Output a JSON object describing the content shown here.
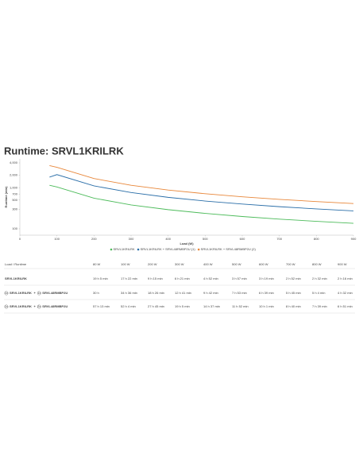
{
  "title": "Runtime: SRVL1KRILRK",
  "chart_data": {
    "type": "line",
    "x_label": "Load (W)",
    "y_label": "Runtime (min)",
    "x": [
      80,
      100,
      200,
      300,
      400,
      500,
      600,
      700,
      800,
      900
    ],
    "xlim": [
      0,
      900
    ],
    "xticks": [
      0,
      100,
      200,
      300,
      400,
      500,
      600,
      700,
      800,
      900
    ],
    "ylim": [
      70,
      5000
    ],
    "log_y": true,
    "yticks": [
      {
        "value": 4000,
        "label": "4,000"
      },
      {
        "value": 2000,
        "label": "2,000"
      },
      {
        "value": 1000,
        "label": "1,000"
      },
      700,
      500,
      300,
      100
    ],
    "grid": false,
    "legend": "bottom",
    "series": [
      {
        "name": "SRVL1KRILRK",
        "color": "#4cbb5a",
        "values": [
          1145,
          1042,
          555,
          381,
          292,
          237,
          199,
          172,
          152,
          136
        ]
      },
      {
        "name": "SRVL1KRILRK + SRVL48RMBP2U (1)",
        "color": "#2a6ea8",
        "values": [
          1800,
          2076,
          1106,
          761,
          582,
          473,
          399,
          345,
          304,
          272
        ]
      },
      {
        "name": "SRVL1KRILRK + SRVL48RMBP2U (2)",
        "color": "#e8873a",
        "values": [
          3433,
          3124,
          1665,
          1145,
          877,
          712,
          601,
          520,
          459,
          411
        ]
      }
    ]
  },
  "table": {
    "header": [
      "Load / Runtime",
      "80 W",
      "100 W",
      "200 W",
      "300 W",
      "400 W",
      "500 W",
      "600 W",
      "700 W",
      "800 W",
      "900 W"
    ],
    "rows": [
      {
        "label": {
          "parts": [
            "SRVL1KRILRK"
          ]
        },
        "cells": [
          "19 h 5 min",
          "17 h 22 min",
          "9 h 15 min",
          "6 h 21 min",
          "4 h 52 min",
          "3 h 57 min",
          "3 h 19 min",
          "2 h 52 min",
          "2 h 32 min",
          "2 h 16 min"
        ]
      },
      {
        "label": {
          "parts": [
            "1x",
            "SRVL1KRILRK",
            "+",
            "1x",
            "SRVL48RMBP2U"
          ]
        },
        "cells": [
          "30 h",
          "34 h 36 min",
          "18 h 26 min",
          "12 h 41 min",
          "9 h 42 min",
          "7 h 53 min",
          "6 h 39 min",
          "5 h 45 min",
          "5 h 4 min",
          "4 h 32 min"
        ]
      },
      {
        "label": {
          "parts": [
            "1x",
            "SRVL1KRILRK",
            "+",
            "2x",
            "SRVL48RMBP2U"
          ]
        },
        "cells": [
          "57 h 13 min",
          "52 h 4 min",
          "27 h 45 min",
          "19 h 5 min",
          "14 h 37 min",
          "11 h 52 min",
          "10 h 1 min",
          "8 h 40 min",
          "7 h 39 min",
          "6 h 51 min"
        ]
      }
    ]
  }
}
